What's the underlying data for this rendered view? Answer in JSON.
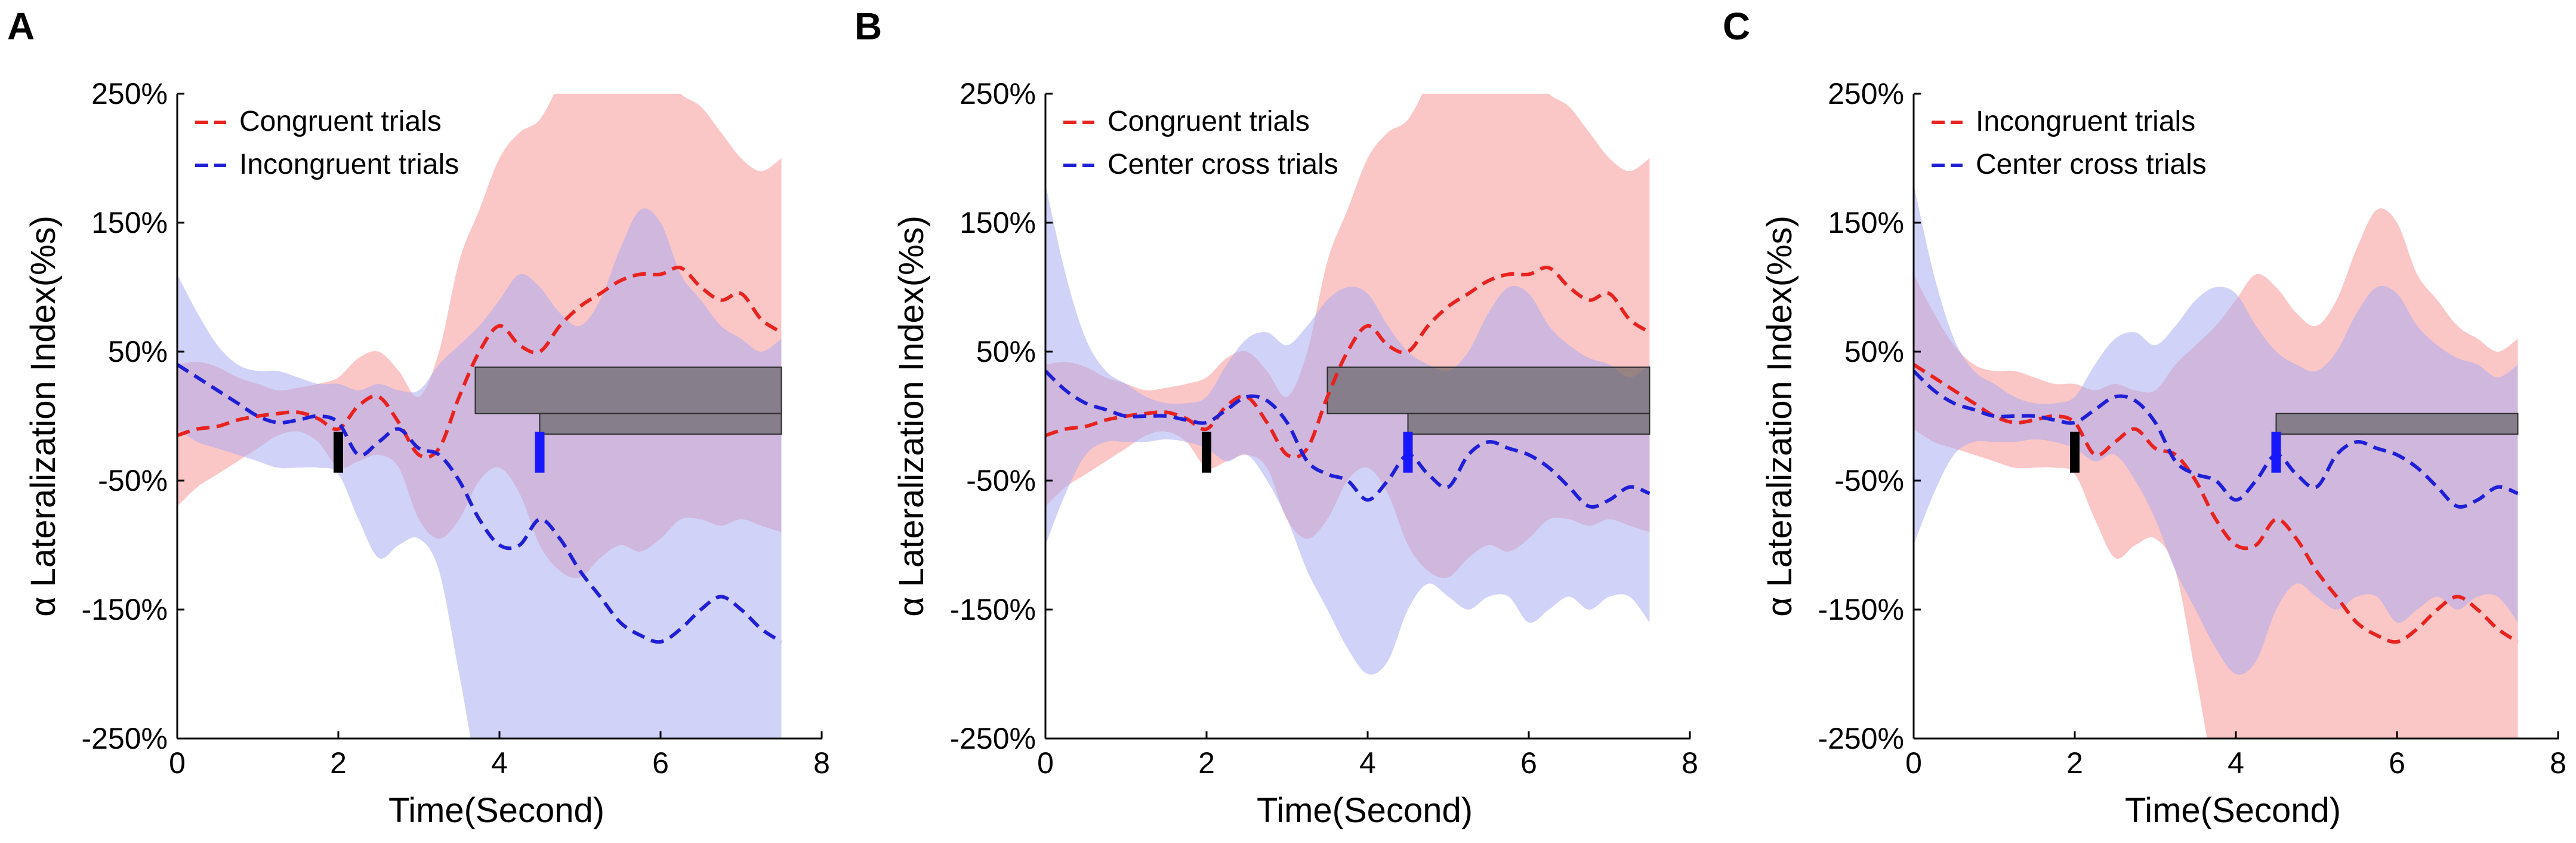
{
  "colors": {
    "red_line": "#e8231f",
    "red_band": "#f8a3a3",
    "blue_line": "#1f1fd6",
    "blue_band": "#a7a9f1",
    "overlap_band": "#c99fd6",
    "window_box": "#5a5a5a",
    "black_marker": "#000000",
    "blue_marker": "#1616ff"
  },
  "chart_data": [
    {
      "type": "line",
      "panel": "A",
      "xlabel": "Time(Second)",
      "ylabel": "α Lateralization Index(%s)",
      "xlim": [
        0,
        8
      ],
      "ylim": [
        -250,
        250
      ],
      "xticks": [
        "0",
        "2",
        "4",
        "6",
        "8"
      ],
      "yticks": [
        "250%",
        "150%",
        "50%",
        "-50%",
        "-150%",
        "-250%"
      ],
      "ytick_values": [
        250,
        150,
        50,
        -50,
        -150,
        -250
      ],
      "legend": [
        "Congruent trials",
        "Incongruent trials"
      ],
      "x": [
        0,
        0.25,
        0.5,
        0.75,
        1,
        1.25,
        1.5,
        1.75,
        2,
        2.25,
        2.5,
        2.75,
        3,
        3.25,
        3.5,
        3.75,
        4,
        4.25,
        4.5,
        4.75,
        5,
        5.25,
        5.5,
        5.75,
        6,
        6.25,
        6.5,
        6.75,
        7,
        7.25,
        7.5
      ],
      "series": [
        {
          "name": "Congruent trials",
          "color": "red",
          "values": [
            -15,
            -10,
            -8,
            -3,
            0,
            2,
            3,
            -2,
            -10,
            8,
            15,
            -5,
            -30,
            -25,
            15,
            50,
            70,
            55,
            50,
            70,
            85,
            95,
            105,
            110,
            110,
            115,
            100,
            90,
            95,
            75,
            65
          ],
          "upper": [
            40,
            42,
            38,
            30,
            25,
            20,
            22,
            25,
            30,
            45,
            50,
            35,
            15,
            50,
            120,
            160,
            200,
            220,
            230,
            260,
            300,
            320,
            330,
            310,
            270,
            250,
            240,
            220,
            200,
            190,
            200
          ],
          "lower": [
            -70,
            -55,
            -45,
            -35,
            -25,
            -15,
            -12,
            -20,
            -40,
            -35,
            -30,
            -40,
            -80,
            -95,
            -80,
            -50,
            -40,
            -60,
            -100,
            -120,
            -125,
            -110,
            -100,
            -105,
            -95,
            -80,
            -80,
            -85,
            -80,
            -85,
            -90
          ]
        },
        {
          "name": "Incongruent trials",
          "color": "blue",
          "values": [
            40,
            30,
            20,
            10,
            0,
            -5,
            -3,
            0,
            -5,
            -30,
            -20,
            -10,
            -25,
            -30,
            -50,
            -80,
            -100,
            -100,
            -80,
            -95,
            -120,
            -140,
            -160,
            -170,
            -175,
            -165,
            -150,
            -140,
            -150,
            -165,
            -175
          ],
          "upper": [
            110,
            80,
            55,
            40,
            35,
            35,
            30,
            25,
            25,
            20,
            25,
            20,
            20,
            40,
            55,
            70,
            90,
            110,
            100,
            80,
            70,
            90,
            130,
            160,
            150,
            110,
            90,
            70,
            60,
            50,
            60
          ],
          "lower": [
            -10,
            -20,
            -25,
            -30,
            -35,
            -40,
            -40,
            -40,
            -45,
            -80,
            -110,
            -100,
            -95,
            -120,
            -200,
            -280,
            -300,
            -310,
            -300,
            -280,
            -250,
            -290,
            -330,
            -340,
            -320,
            -300,
            -290,
            -280,
            -280,
            -290,
            -300
          ]
        }
      ],
      "markers": [
        {
          "x": 2,
          "color": "black"
        },
        {
          "x": 4.5,
          "color": "blue"
        }
      ],
      "windows": [
        {
          "x0": 3.7,
          "x1": 7.5,
          "y0": 38,
          "y1": 2
        },
        {
          "x0": 4.5,
          "x1": 7.5,
          "y0": 2,
          "y1": -14
        }
      ]
    },
    {
      "type": "line",
      "panel": "B",
      "xlabel": "Time(Second)",
      "ylabel": "α Lateralization Index(%s)",
      "xlim": [
        0,
        8
      ],
      "ylim": [
        -250,
        250
      ],
      "xticks": [
        "0",
        "2",
        "4",
        "6",
        "8"
      ],
      "yticks": [
        "250%",
        "150%",
        "50%",
        "-50%",
        "-150%",
        "-250%"
      ],
      "ytick_values": [
        250,
        150,
        50,
        -50,
        -150,
        -250
      ],
      "legend": [
        "Congruent trials",
        "Center cross trials"
      ],
      "x": [
        0,
        0.25,
        0.5,
        0.75,
        1,
        1.25,
        1.5,
        1.75,
        2,
        2.25,
        2.5,
        2.75,
        3,
        3.25,
        3.5,
        3.75,
        4,
        4.25,
        4.5,
        4.75,
        5,
        5.25,
        5.5,
        5.75,
        6,
        6.25,
        6.5,
        6.75,
        7,
        7.25,
        7.5
      ],
      "series": [
        {
          "name": "Congruent trials",
          "color": "red",
          "values": [
            -15,
            -10,
            -8,
            -3,
            0,
            2,
            3,
            -2,
            -10,
            8,
            15,
            -5,
            -30,
            -25,
            15,
            50,
            70,
            55,
            50,
            70,
            85,
            95,
            105,
            110,
            110,
            115,
            100,
            90,
            95,
            75,
            65
          ],
          "upper": [
            40,
            42,
            38,
            30,
            25,
            20,
            22,
            25,
            30,
            45,
            50,
            35,
            15,
            50,
            120,
            160,
            200,
            220,
            230,
            260,
            300,
            320,
            330,
            310,
            270,
            250,
            240,
            220,
            200,
            190,
            200
          ],
          "lower": [
            -70,
            -55,
            -45,
            -35,
            -25,
            -15,
            -12,
            -20,
            -40,
            -35,
            -30,
            -40,
            -80,
            -95,
            -80,
            -50,
            -40,
            -60,
            -100,
            -120,
            -125,
            -110,
            -100,
            -105,
            -95,
            -80,
            -80,
            -85,
            -80,
            -85,
            -90
          ]
        },
        {
          "name": "Center cross trials",
          "color": "blue",
          "values": [
            35,
            20,
            10,
            5,
            0,
            0,
            0,
            -3,
            -5,
            5,
            15,
            12,
            -5,
            -35,
            -45,
            -50,
            -65,
            -50,
            -30,
            -45,
            -55,
            -30,
            -20,
            -25,
            -30,
            -40,
            -55,
            -70,
            -65,
            -55,
            -60
          ],
          "upper": [
            180,
            110,
            60,
            35,
            25,
            15,
            10,
            10,
            15,
            40,
            60,
            65,
            55,
            70,
            90,
            100,
            95,
            70,
            50,
            40,
            35,
            50,
            80,
            100,
            95,
            70,
            55,
            45,
            40,
            30,
            40
          ],
          "lower": [
            -100,
            -60,
            -30,
            -20,
            -20,
            -20,
            -18,
            -20,
            -25,
            -35,
            -30,
            -50,
            -80,
            -120,
            -150,
            -180,
            -200,
            -190,
            -150,
            -130,
            -140,
            -150,
            -140,
            -140,
            -160,
            -150,
            -140,
            -150,
            -140,
            -140,
            -160
          ]
        }
      ],
      "markers": [
        {
          "x": 2,
          "color": "black"
        },
        {
          "x": 4.5,
          "color": "blue"
        }
      ],
      "windows": [
        {
          "x0": 3.5,
          "x1": 7.5,
          "y0": 38,
          "y1": 2
        },
        {
          "x0": 4.5,
          "x1": 7.5,
          "y0": 2,
          "y1": -14
        }
      ]
    },
    {
      "type": "line",
      "panel": "C",
      "xlabel": "Time(Second)",
      "ylabel": "α Lateralization Index(%s)",
      "xlim": [
        0,
        8
      ],
      "ylim": [
        -250,
        250
      ],
      "xticks": [
        "0",
        "2",
        "4",
        "6",
        "8"
      ],
      "yticks": [
        "250%",
        "150%",
        "50%",
        "-50%",
        "-150%",
        "-250%"
      ],
      "ytick_values": [
        250,
        150,
        50,
        -50,
        -150,
        -250
      ],
      "legend": [
        "Incongruent trials",
        "Center cross trials"
      ],
      "x": [
        0,
        0.25,
        0.5,
        0.75,
        1,
        1.25,
        1.5,
        1.75,
        2,
        2.25,
        2.5,
        2.75,
        3,
        3.25,
        3.5,
        3.75,
        4,
        4.25,
        4.5,
        4.75,
        5,
        5.25,
        5.5,
        5.75,
        6,
        6.25,
        6.5,
        6.75,
        7,
        7.25,
        7.5
      ],
      "series": [
        {
          "name": "Incongruent trials",
          "color": "red",
          "values": [
            40,
            30,
            20,
            10,
            0,
            -5,
            -3,
            0,
            -5,
            -30,
            -20,
            -10,
            -25,
            -30,
            -50,
            -80,
            -100,
            -100,
            -80,
            -95,
            -120,
            -140,
            -160,
            -170,
            -175,
            -165,
            -150,
            -140,
            -150,
            -165,
            -175
          ],
          "upper": [
            110,
            80,
            55,
            40,
            35,
            35,
            30,
            25,
            25,
            20,
            25,
            20,
            20,
            40,
            55,
            70,
            90,
            110,
            100,
            80,
            70,
            90,
            130,
            160,
            150,
            110,
            90,
            70,
            60,
            50,
            60
          ],
          "lower": [
            -10,
            -20,
            -25,
            -30,
            -35,
            -40,
            -40,
            -40,
            -45,
            -80,
            -110,
            -100,
            -95,
            -120,
            -200,
            -280,
            -300,
            -310,
            -300,
            -280,
            -250,
            -290,
            -330,
            -340,
            -320,
            -300,
            -290,
            -280,
            -280,
            -290,
            -300
          ]
        },
        {
          "name": "Center cross trials",
          "color": "blue",
          "values": [
            35,
            20,
            10,
            5,
            0,
            0,
            0,
            -3,
            -5,
            5,
            15,
            12,
            -5,
            -35,
            -45,
            -50,
            -65,
            -50,
            -30,
            -45,
            -55,
            -30,
            -20,
            -25,
            -30,
            -40,
            -55,
            -70,
            -65,
            -55,
            -60
          ],
          "upper": [
            180,
            110,
            60,
            35,
            25,
            15,
            10,
            10,
            15,
            40,
            60,
            65,
            55,
            70,
            90,
            100,
            95,
            70,
            50,
            40,
            35,
            50,
            80,
            100,
            95,
            70,
            55,
            45,
            40,
            30,
            40
          ],
          "lower": [
            -100,
            -60,
            -30,
            -20,
            -20,
            -20,
            -18,
            -20,
            -25,
            -35,
            -30,
            -50,
            -80,
            -120,
            -150,
            -180,
            -200,
            -190,
            -150,
            -130,
            -140,
            -150,
            -140,
            -140,
            -160,
            -150,
            -140,
            -150,
            -140,
            -140,
            -160
          ]
        }
      ],
      "markers": [
        {
          "x": 2,
          "color": "black"
        },
        {
          "x": 4.5,
          "color": "blue"
        }
      ],
      "windows": [
        {
          "x0": 4.5,
          "x1": 7.5,
          "y0": 2,
          "y1": -14
        }
      ]
    }
  ]
}
